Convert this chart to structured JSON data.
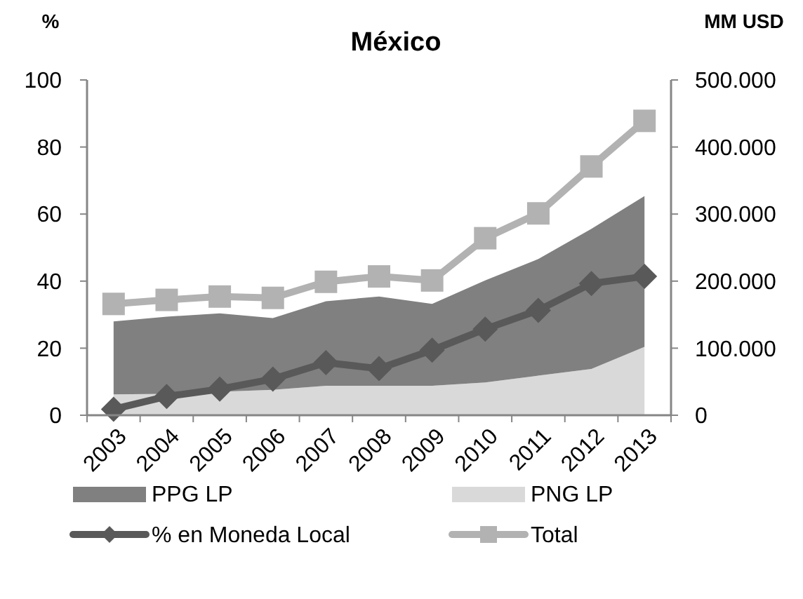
{
  "chart_data": {
    "type": "line",
    "title": "México",
    "ylabel": "%",
    "y2label": "MM USD",
    "categories": [
      "2003",
      "2004",
      "2005",
      "2006",
      "2007",
      "2008",
      "2009",
      "2010",
      "2011",
      "2012",
      "2013"
    ],
    "stacked": true,
    "legend": "bottom",
    "ylim": [
      0,
      100
    ],
    "yticks": [
      0,
      20,
      40,
      60,
      80,
      100
    ],
    "y2lim": [
      0,
      500000
    ],
    "y2ticks": [
      {
        "value": 0,
        "label": "0"
      },
      {
        "value": 100000,
        "label": "100.000"
      },
      {
        "value": 200000,
        "label": "200.000"
      },
      {
        "value": 300000,
        "label": "300.000"
      },
      {
        "value": 400000,
        "label": "400.000"
      },
      {
        "value": 500000,
        "label": "500.000"
      }
    ],
    "series": [
      {
        "name": "PNG LP",
        "type": "area",
        "axis": "y2",
        "color": "#d9d9d9",
        "values": [
          31000,
          32000,
          35000,
          38000,
          44000,
          44000,
          44000,
          49000,
          59000,
          69000,
          102000
        ]
      },
      {
        "name": "PPG LP",
        "type": "area",
        "axis": "y2",
        "color": "#808080",
        "values": [
          109000,
          115000,
          117000,
          107000,
          126000,
          133000,
          122000,
          152000,
          174000,
          209000,
          225000
        ]
      },
      {
        "name": "% en Moneda Local",
        "axis": "y",
        "color": "#595959",
        "marker": "diamond",
        "values": [
          1.8,
          5.6,
          7.8,
          10.8,
          15.7,
          13.9,
          19.4,
          25.7,
          31.3,
          39.3,
          41.4
        ]
      },
      {
        "name": "Total",
        "axis": "y2",
        "color": "#b2b2b2",
        "marker": "square",
        "values": [
          166000,
          172000,
          177000,
          175000,
          199000,
          207000,
          201000,
          264000,
          301000,
          371000,
          439000
        ]
      }
    ]
  }
}
